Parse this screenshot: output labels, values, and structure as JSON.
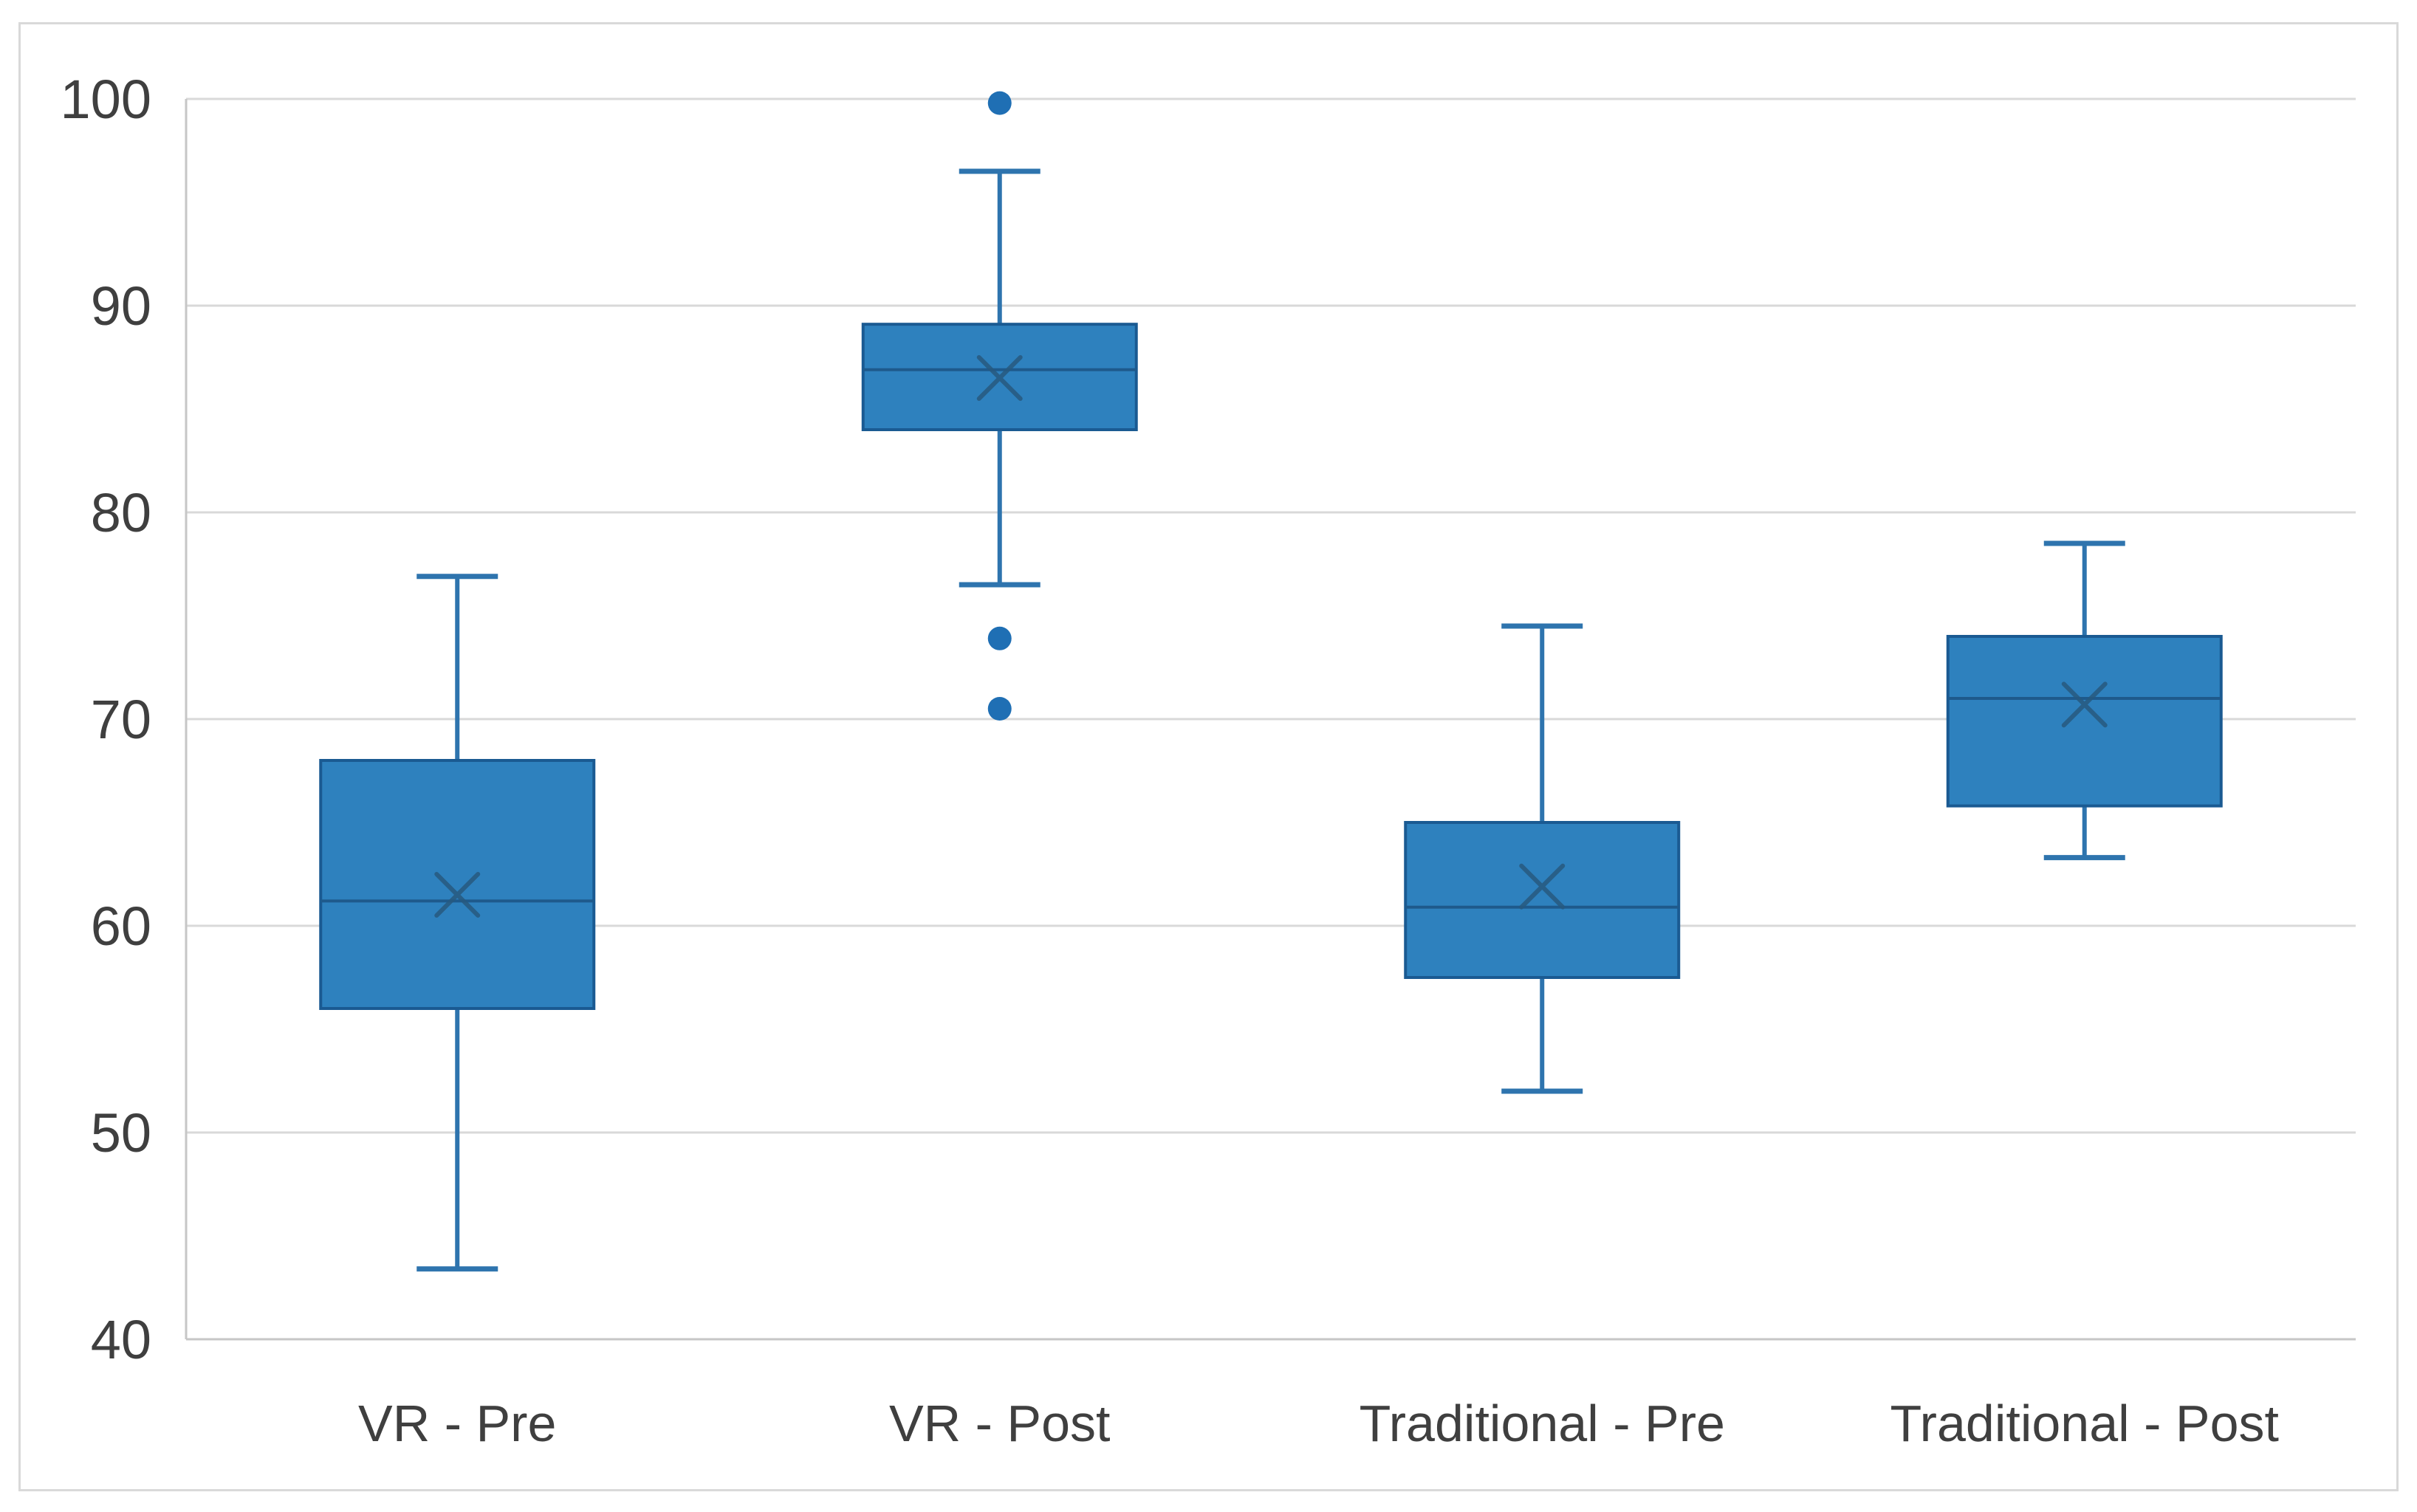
{
  "chart_data": {
    "type": "boxplot",
    "title": "",
    "xlabel": "",
    "ylabel": "",
    "categories": [
      "VR - Pre",
      "VR - Post",
      "Traditional - Pre",
      "Traditional - Post"
    ],
    "yticks": [
      40,
      50,
      60,
      70,
      80,
      90,
      100
    ],
    "ylim": [
      40,
      100
    ],
    "grid": true,
    "legend": "none",
    "series": [
      {
        "name": "VR - Pre",
        "whisker_low": 43.4,
        "q1": 56.0,
        "median": 61.2,
        "q3": 68.0,
        "whisker_high": 76.9,
        "mean": 61.5,
        "outliers": []
      },
      {
        "name": "VR - Post",
        "whisker_low": 76.5,
        "q1": 84.0,
        "median": 86.9,
        "q3": 89.1,
        "whisker_high": 96.5,
        "mean": 86.5,
        "outliers": [
          99.8,
          73.9,
          70.5
        ]
      },
      {
        "name": "Traditional - Pre",
        "whisker_low": 52.0,
        "q1": 57.5,
        "median": 60.9,
        "q3": 65.0,
        "whisker_high": 74.5,
        "mean": 61.9,
        "outliers": []
      },
      {
        "name": "Traditional - Post",
        "whisker_low": 63.3,
        "q1": 65.8,
        "median": 71.0,
        "q3": 74.0,
        "whisker_high": 78.5,
        "mean": 70.7,
        "outliers": []
      }
    ],
    "colors": {
      "background": "#FFFFFF",
      "card_border": "#D9D9D9",
      "box_fill": "#2E81BE",
      "box_border": "#1A5A92",
      "whisker": "#2E74AE",
      "median": "#1E5A8C",
      "mean_marker": "#27597F",
      "outlier": "#1F6FB4",
      "gridline": "#D9D9D9",
      "axis_line": "#C6C6C6",
      "tick_label": "#3F3F3F"
    }
  }
}
